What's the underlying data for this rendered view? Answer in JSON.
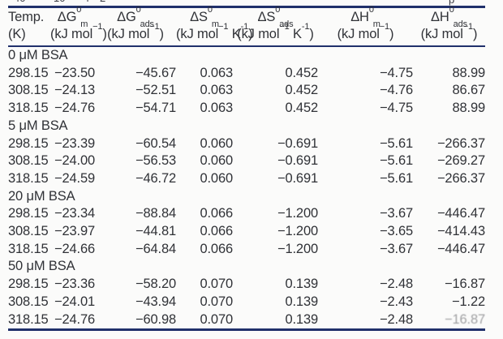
{
  "page": {
    "background": "#fbfbfa",
    "rule_color": "#20306b",
    "text_color": "#303237"
  },
  "cropped_top_fragments": [
    "-",
    "40",
    "10",
    "4",
    "2",
    "p"
  ],
  "table": {
    "columns": [
      {
        "line1": [
          {
            "t": "Temp."
          }
        ],
        "line2": [
          {
            "t": "(K)"
          }
        ]
      },
      {
        "line1": [
          {
            "t": "ΔG"
          },
          {
            "sup": "0"
          },
          {
            "sub": "m"
          }
        ],
        "line2": [
          {
            "t": "(kJ mol"
          },
          {
            "sup": "−1"
          },
          {
            "t": ")"
          }
        ]
      },
      {
        "line1": [
          {
            "t": "ΔG"
          },
          {
            "sup": "0"
          },
          {
            "sub": "ads"
          }
        ],
        "line2": [
          {
            "t": "(kJ mol"
          },
          {
            "sup": "−1"
          },
          {
            "t": ")"
          }
        ]
      },
      {
        "line1": [
          {
            "t": "ΔS"
          },
          {
            "sup": "0"
          },
          {
            "sub": "m"
          }
        ],
        "line2": [
          {
            "t": "(kJ mol"
          },
          {
            "sup": "−1"
          },
          {
            "t": " K"
          },
          {
            "sup": "-1"
          },
          {
            "t": ")"
          }
        ]
      },
      {
        "line1": [
          {
            "t": "ΔS"
          },
          {
            "sup": "0"
          },
          {
            "sub": "ads"
          }
        ],
        "line2": [
          {
            "t": "(kJ mol"
          },
          {
            "sup": "−1"
          },
          {
            "t": " K"
          },
          {
            "sup": "-1"
          },
          {
            "t": ")"
          }
        ]
      },
      {
        "line1": [
          {
            "t": "ΔH"
          },
          {
            "sup": "0"
          },
          {
            "sub": "m"
          }
        ],
        "line2": [
          {
            "t": "(kJ mol"
          },
          {
            "sup": "−1"
          },
          {
            "t": ")"
          }
        ]
      },
      {
        "line1": [
          {
            "t": "ΔH"
          },
          {
            "sup": "0"
          },
          {
            "sub": "ads"
          }
        ],
        "line2": [
          {
            "t": "(kJ mol"
          },
          {
            "sup": "−1"
          },
          {
            "t": ")"
          }
        ]
      }
    ],
    "sections": [
      {
        "label": "0 μM BSA",
        "rows": [
          [
            "298.15",
            "−23.50",
            "−45.67",
            "0.063",
            "0.452",
            "−4.75",
            "88.99"
          ],
          [
            "308.15",
            "−24.13",
            "−52.51",
            "0.063",
            "0.452",
            "−4.76",
            "86.67"
          ],
          [
            "318.15",
            "−24.76",
            "−54.71",
            "0.063",
            "0.452",
            "−4.75",
            "88.99"
          ]
        ]
      },
      {
        "label": "5 μM BSA",
        "rows": [
          [
            "298.15",
            "−23.39",
            "−60.54",
            "0.060",
            "−0.691",
            "−5.61",
            "−266.37"
          ],
          [
            "308.15",
            "−24.00",
            "−56.53",
            "0.060",
            "−0.691",
            "−5.61",
            "−269.27"
          ],
          [
            "318.15",
            "−24.59",
            "−46.72",
            "0.060",
            "−0.691",
            "−5.61",
            "−266.37"
          ]
        ]
      },
      {
        "label": "20 μM BSA",
        "rows": [
          [
            "298.15",
            "−23.34",
            "−88.84",
            "0.066",
            "−1.200",
            "−3.67",
            "−446.47"
          ],
          [
            "308.15",
            "−23.97",
            "−44.81",
            "0.066",
            "−1.200",
            "−3.65",
            "−414.43"
          ],
          [
            "318.15",
            "−24.66",
            "−64.84",
            "0.066",
            "−1.200",
            "−3.67",
            "−446.47"
          ]
        ]
      },
      {
        "label": "50 μM BSA",
        "rows": [
          [
            "298.15",
            "−23.36",
            "−58.20",
            "0.070",
            "0.139",
            "−2.48",
            "−16.87"
          ],
          [
            "308.15",
            "−24.01",
            "−43.94",
            "0.070",
            "0.139",
            "−2.43",
            "−1.22"
          ],
          [
            "318.15",
            "−24.76",
            "−60.98",
            "0.070",
            "0.139",
            "−2.48",
            "−16.87"
          ]
        ]
      }
    ],
    "faded_cell": {
      "section": 3,
      "row": 2,
      "col": 6
    }
  }
}
